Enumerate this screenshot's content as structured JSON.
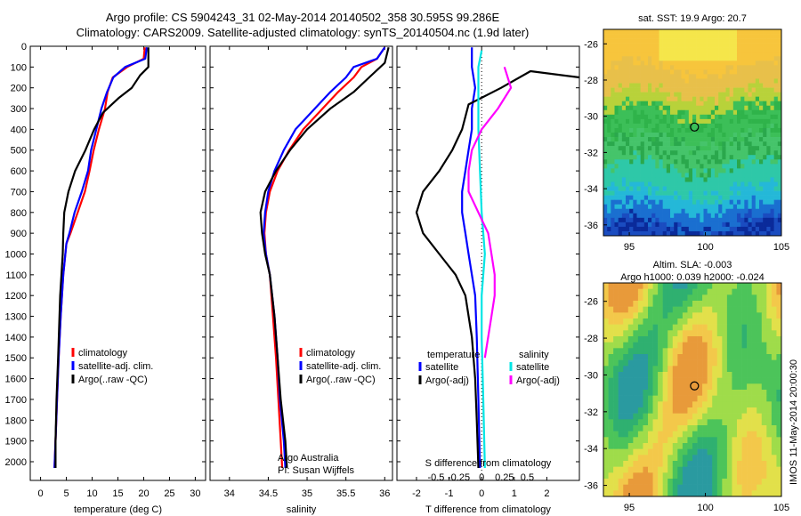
{
  "header": {
    "line1": "Argo profile: CS 5904243_31 02-May-2014 20140502_358 30.595S 99.286E",
    "line2": "Climatology: CARS2009. Satellite-adjusted climatology: synTS_20140504.nc (1.9d later)"
  },
  "credit_label": "IMOS 11-May-2014 20:00:30",
  "colors": {
    "climatology": "#ff0000",
    "satellite": "#0000ff",
    "argo": "#000000",
    "salinity_satellite": "#00e5e5",
    "salinity_argo": "#ff00ff"
  },
  "chart_data": [
    {
      "type": "line",
      "id": "temperature",
      "xlabel": "temperature (deg C)",
      "ylabel": "",
      "xlim": [
        -2,
        32
      ],
      "ylim": [
        2090,
        0
      ],
      "xticks": [
        0,
        5,
        10,
        15,
        20,
        25,
        30
      ],
      "yticks": [
        0,
        100,
        200,
        300,
        400,
        500,
        600,
        700,
        800,
        900,
        1000,
        1100,
        1200,
        1300,
        1400,
        1500,
        1600,
        1700,
        1800,
        1900,
        2000
      ],
      "legend": [
        "climatology",
        "satellite-adj. clim.",
        "Argo(..raw -QC)"
      ],
      "series": [
        {
          "name": "climatology",
          "color": "#ff0000",
          "points": [
            [
              20.2,
              5
            ],
            [
              20.0,
              60
            ],
            [
              16.8,
              100
            ],
            [
              14.0,
              150
            ],
            [
              13.0,
              220
            ],
            [
              12.5,
              300
            ],
            [
              11.3,
              400
            ],
            [
              10.3,
              500
            ],
            [
              9.5,
              600
            ],
            [
              8.6,
              700
            ],
            [
              7.2,
              800
            ],
            [
              5.8,
              900
            ],
            [
              5.0,
              950
            ],
            [
              4.4,
              1100
            ],
            [
              3.9,
              1300
            ],
            [
              3.5,
              1500
            ],
            [
              3.2,
              1700
            ],
            [
              2.9,
              1900
            ],
            [
              2.7,
              2030
            ]
          ]
        },
        {
          "name": "satellite-adj. clim.",
          "color": "#0000ff",
          "points": [
            [
              20.6,
              5
            ],
            [
              20.3,
              60
            ],
            [
              16.4,
              100
            ],
            [
              14.1,
              150
            ],
            [
              12.9,
              220
            ],
            [
              11.8,
              300
            ],
            [
              10.8,
              400
            ],
            [
              9.8,
              500
            ],
            [
              9.2,
              600
            ],
            [
              8.0,
              700
            ],
            [
              6.6,
              800
            ],
            [
              5.6,
              900
            ],
            [
              5.0,
              950
            ],
            [
              4.4,
              1100
            ],
            [
              3.9,
              1300
            ],
            [
              3.5,
              1500
            ],
            [
              3.2,
              1700
            ],
            [
              2.9,
              1900
            ],
            [
              2.7,
              2030
            ]
          ]
        },
        {
          "name": "Argo(..raw -QC)",
          "color": "#000000",
          "points": [
            [
              20.9,
              5
            ],
            [
              20.9,
              100
            ],
            [
              19.3,
              140
            ],
            [
              17.7,
              200
            ],
            [
              15.1,
              250
            ],
            [
              12.1,
              320
            ],
            [
              10.4,
              400
            ],
            [
              8.7,
              500
            ],
            [
              6.7,
              600
            ],
            [
              5.4,
              700
            ],
            [
              4.6,
              800
            ],
            [
              4.4,
              900
            ],
            [
              4.3,
              1000
            ],
            [
              3.8,
              1200
            ],
            [
              3.4,
              1500
            ],
            [
              3.1,
              1700
            ],
            [
              2.9,
              1900
            ],
            [
              2.9,
              2030
            ]
          ]
        }
      ]
    },
    {
      "type": "line",
      "id": "salinity",
      "xlabel": "salinity",
      "ylabel": "",
      "xlim": [
        33.75,
        36.1
      ],
      "ylim": [
        2090,
        0
      ],
      "xticks": [
        34,
        34.5,
        35,
        35.5,
        36
      ],
      "xtick_labels": [
        "34",
        "34.5",
        "35",
        "35.5",
        "36"
      ],
      "legend": [
        "climatology",
        "satellite-adj. clim.",
        "Argo(..raw -QC)"
      ],
      "annotation": [
        "Argo Australia",
        "PI: Susan Wijffels"
      ],
      "series": [
        {
          "name": "climatology",
          "color": "#ff0000",
          "points": [
            [
              36.0,
              5
            ],
            [
              35.9,
              60
            ],
            [
              35.7,
              100
            ],
            [
              35.6,
              150
            ],
            [
              35.4,
              220
            ],
            [
              35.2,
              300
            ],
            [
              34.95,
              400
            ],
            [
              34.77,
              500
            ],
            [
              34.62,
              600
            ],
            [
              34.52,
              700
            ],
            [
              34.47,
              800
            ],
            [
              34.45,
              900
            ],
            [
              34.47,
              1000
            ],
            [
              34.52,
              1100
            ],
            [
              34.56,
              1300
            ],
            [
              34.6,
              1500
            ],
            [
              34.63,
              1700
            ],
            [
              34.66,
              1900
            ],
            [
              34.68,
              2030
            ]
          ]
        },
        {
          "name": "satellite-adj. clim.",
          "color": "#0000ff",
          "points": [
            [
              36.0,
              5
            ],
            [
              35.9,
              60
            ],
            [
              35.6,
              100
            ],
            [
              35.5,
              150
            ],
            [
              35.3,
              220
            ],
            [
              35.1,
              300
            ],
            [
              34.85,
              400
            ],
            [
              34.7,
              500
            ],
            [
              34.58,
              600
            ],
            [
              34.5,
              700
            ],
            [
              34.46,
              800
            ],
            [
              34.44,
              900
            ],
            [
              34.47,
              1000
            ],
            [
              34.52,
              1100
            ],
            [
              34.58,
              1300
            ],
            [
              34.62,
              1500
            ],
            [
              34.65,
              1700
            ],
            [
              34.7,
              1900
            ],
            [
              34.72,
              2030
            ]
          ]
        },
        {
          "name": "Argo(..raw -QC)",
          "color": "#000000",
          "points": [
            [
              36.05,
              5
            ],
            [
              36.0,
              80
            ],
            [
              35.8,
              150
            ],
            [
              35.6,
              220
            ],
            [
              35.3,
              300
            ],
            [
              35.0,
              400
            ],
            [
              34.78,
              500
            ],
            [
              34.6,
              600
            ],
            [
              34.46,
              700
            ],
            [
              34.4,
              800
            ],
            [
              34.42,
              900
            ],
            [
              34.46,
              1000
            ],
            [
              34.52,
              1100
            ],
            [
              34.58,
              1300
            ],
            [
              34.62,
              1500
            ],
            [
              34.66,
              1700
            ],
            [
              34.72,
              1900
            ],
            [
              34.74,
              2030
            ]
          ]
        }
      ]
    },
    {
      "type": "line",
      "id": "difference",
      "xlabel": "T difference from climatology",
      "xlabel_top": "S difference from climatology",
      "xlim": [
        -2.6,
        3.0
      ],
      "ylim": [
        2090,
        0
      ],
      "xticks": [
        -2,
        -1,
        0,
        1,
        2
      ],
      "xtick_labels": [
        "-2",
        "-1",
        "0",
        "1",
        "2"
      ],
      "s_tick_labels": [
        "-0.5",
        "-0.25",
        "0",
        "0.25",
        "0.5"
      ],
      "legend": {
        "temperature": [
          "satellite",
          "Argo(-adj)"
        ],
        "salinity": [
          "satellite",
          "Argo(-adj)"
        ]
      },
      "legend_titles": [
        "temperature",
        "salinity"
      ],
      "series": [
        {
          "name": "temperature satellite",
          "color": "#0000ff",
          "points": [
            [
              -0.3,
              5
            ],
            [
              -0.3,
              100
            ],
            [
              -0.2,
              200
            ],
            [
              -0.3,
              300
            ],
            [
              -0.3,
              400
            ],
            [
              -0.4,
              500
            ],
            [
              -0.5,
              600
            ],
            [
              -0.6,
              700
            ],
            [
              -0.6,
              800
            ],
            [
              -0.5,
              900
            ],
            [
              -0.4,
              1000
            ],
            [
              -0.3,
              1100
            ],
            [
              -0.2,
              1200
            ],
            [
              -0.15,
              1400
            ],
            [
              -0.1,
              1700
            ],
            [
              -0.05,
              2030
            ]
          ]
        },
        {
          "name": "temperature Argo(-adj)",
          "color": "#000000",
          "points": [
            [
              3.0,
              150
            ],
            [
              1.5,
              120
            ],
            [
              0.6,
              200
            ],
            [
              -0.4,
              280
            ],
            [
              -0.6,
              400
            ],
            [
              -0.9,
              500
            ],
            [
              -1.3,
              600
            ],
            [
              -1.8,
              700
            ],
            [
              -2.0,
              800
            ],
            [
              -1.8,
              900
            ],
            [
              -1.3,
              1000
            ],
            [
              -0.8,
              1100
            ],
            [
              -0.5,
              1200
            ],
            [
              -0.3,
              1400
            ],
            [
              -0.2,
              1600
            ],
            [
              -0.15,
              1800
            ],
            [
              -0.1,
              2030
            ]
          ]
        },
        {
          "name": "salinity satellite",
          "color": "#00e5e5",
          "points": [
            [
              0.0,
              20
            ],
            [
              -0.1,
              100
            ],
            [
              -0.1,
              200
            ],
            [
              -0.1,
              400
            ],
            [
              -0.05,
              600
            ],
            [
              0.0,
              800
            ],
            [
              0.1,
              1000
            ],
            [
              0.0,
              1200
            ],
            [
              0.0,
              1400
            ],
            [
              0.05,
              1700
            ],
            [
              0.1,
              2030
            ]
          ]
        },
        {
          "name": "salinity Argo(-adj)",
          "color": "#ff00ff",
          "points": [
            [
              0.7,
              100
            ],
            [
              0.9,
              200
            ],
            [
              0.5,
              300
            ],
            [
              0.0,
              400
            ],
            [
              -0.3,
              500
            ],
            [
              -0.4,
              600
            ],
            [
              -0.4,
              700
            ],
            [
              -0.1,
              800
            ],
            [
              0.2,
              900
            ],
            [
              0.3,
              1000
            ],
            [
              0.4,
              1100
            ],
            [
              0.4,
              1200
            ],
            [
              0.3,
              1300
            ],
            [
              0.2,
              1400
            ],
            [
              0.1,
              1500
            ]
          ]
        }
      ]
    },
    {
      "type": "heatmap",
      "id": "sst_map",
      "title": "sat. SST: 19.9 Argo: 20.7",
      "xlim": [
        93.3,
        105
      ],
      "ylim": [
        -36.6,
        -25.2
      ],
      "xticks": [
        95,
        100,
        105
      ],
      "yticks": [
        -26,
        -28,
        -30,
        -32,
        -34,
        -36
      ],
      "marker": [
        99.286,
        -30.595
      ]
    },
    {
      "type": "heatmap",
      "id": "sla_map",
      "title": "Altim. SLA: -0.003",
      "subtitle": "Argo h1000: 0.039 h2000: -0.024",
      "xlim": [
        93.3,
        105
      ],
      "ylim": [
        -36.6,
        -25.0
      ],
      "xticks": [
        95,
        100,
        105
      ],
      "yticks": [
        -26,
        -28,
        -30,
        -32,
        -34,
        -36
      ],
      "marker": [
        99.286,
        -30.595
      ]
    }
  ]
}
